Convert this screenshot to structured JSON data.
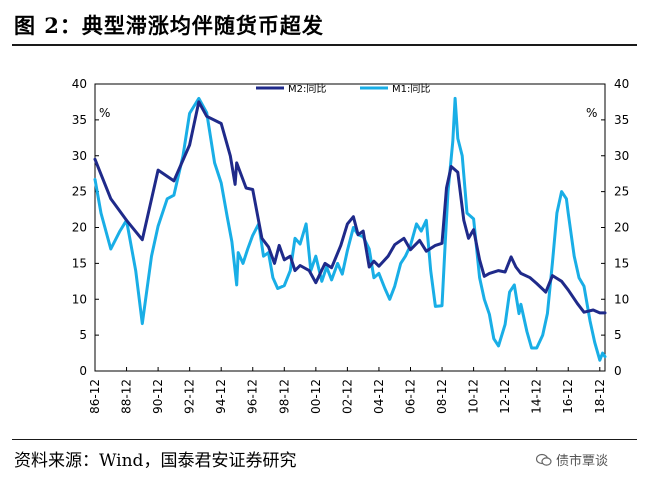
{
  "header": {
    "title": "图 2：典型滞涨均伴随货币超发"
  },
  "footer": {
    "source": "资料来源：Wind，国泰君安证券研究",
    "watermark": "债市覃谈"
  },
  "colors": {
    "m2": "#1f2a8a",
    "m1": "#19aee6",
    "frame": "#000000"
  },
  "chart_data": {
    "type": "line",
    "title": "",
    "xlabel": "",
    "ylabel": "%",
    "ylabel_right": "%",
    "ylim": [
      0,
      40
    ],
    "yticks": [
      "0",
      "5",
      "10",
      "15",
      "20",
      "25",
      "30",
      "35",
      "40"
    ],
    "yticks_right": [
      "0",
      "5",
      "10",
      "15",
      "20",
      "25",
      "30",
      "35",
      "40"
    ],
    "xlim": [
      1986.92,
      2019.25
    ],
    "xticks": [
      {
        "label": "86-12",
        "x": 1986.92
      },
      {
        "label": "88-12",
        "x": 1988.92
      },
      {
        "label": "90-12",
        "x": 1990.92
      },
      {
        "label": "92-12",
        "x": 1992.92
      },
      {
        "label": "94-12",
        "x": 1994.92
      },
      {
        "label": "96-12",
        "x": 1996.92
      },
      {
        "label": "98-12",
        "x": 1998.92
      },
      {
        "label": "00-12",
        "x": 2000.92
      },
      {
        "label": "02-12",
        "x": 2002.92
      },
      {
        "label": "04-12",
        "x": 2004.92
      },
      {
        "label": "06-12",
        "x": 2006.92
      },
      {
        "label": "08-12",
        "x": 2008.92
      },
      {
        "label": "10-12",
        "x": 2010.92
      },
      {
        "label": "12-12",
        "x": 2012.92
      },
      {
        "label": "14-12",
        "x": 2014.92
      },
      {
        "label": "16-12",
        "x": 2016.92
      },
      {
        "label": "18-12",
        "x": 2018.92
      }
    ],
    "legend": {
      "placement": "top-center"
    },
    "series": [
      {
        "name": "M2:同比",
        "color_key": "m2",
        "width": 3,
        "x": [
          1986.92,
          1987.92,
          1988.92,
          1989.92,
          1990.92,
          1991.92,
          1992.92,
          1993.5,
          1994.0,
          1994.92,
          1995.5,
          1995.8,
          1995.9,
          1996.5,
          1996.92,
          1997.5,
          1997.92,
          1998.3,
          1998.6,
          1998.92,
          1999.3,
          1999.6,
          1999.92,
          2000.5,
          2000.92,
          2001.5,
          2001.92,
          2002.5,
          2002.92,
          2003.3,
          2003.6,
          2003.92,
          2004.3,
          2004.6,
          2004.92,
          2005.5,
          2005.92,
          2006.5,
          2006.92,
          2007.5,
          2007.92,
          2008.5,
          2008.92,
          2009.2,
          2009.5,
          2009.92,
          2010.3,
          2010.6,
          2010.92,
          2011.3,
          2011.6,
          2011.92,
          2012.5,
          2012.92,
          2013.3,
          2013.6,
          2013.92,
          2014.5,
          2014.92,
          2015.5,
          2015.92,
          2016.5,
          2016.92,
          2017.5,
          2017.92,
          2018.5,
          2018.92,
          2019.25
        ],
        "y": [
          29.5,
          24,
          21,
          18.3,
          28,
          26.5,
          31.5,
          37.5,
          35.5,
          34.5,
          30,
          26,
          29,
          25.5,
          25.3,
          18.5,
          17.3,
          15,
          17.5,
          15.5,
          16,
          14,
          14.7,
          14,
          12.3,
          15,
          14.4,
          17.5,
          20.5,
          21.5,
          19,
          19.5,
          14.5,
          15.3,
          14.6,
          16,
          17.6,
          18.5,
          16.9,
          18.2,
          16.7,
          17.5,
          17.8,
          25.5,
          28.5,
          27.7,
          21,
          18.5,
          19.7,
          15.5,
          13.2,
          13.6,
          14,
          13.8,
          15.9,
          14.5,
          13.6,
          13,
          12.2,
          11,
          13.3,
          12.5,
          11.3,
          9.4,
          8.2,
          8.5,
          8.1,
          8.1
        ]
      },
      {
        "name": "M1:同比",
        "color_key": "m1",
        "width": 3,
        "x": [
          1986.92,
          1987.3,
          1987.92,
          1988.5,
          1988.92,
          1989.5,
          1989.92,
          1990.5,
          1990.92,
          1991.5,
          1991.92,
          1992.5,
          1992.92,
          1993.5,
          1994.0,
          1994.5,
          1994.92,
          1995.3,
          1995.6,
          1995.9,
          1996.0,
          1996.3,
          1996.6,
          1996.92,
          1997.3,
          1997.6,
          1997.92,
          1998.2,
          1998.5,
          1998.92,
          1999.3,
          1999.6,
          1999.92,
          2000.3,
          2000.6,
          2000.92,
          2001.3,
          2001.6,
          2001.92,
          2002.3,
          2002.6,
          2002.92,
          2003.3,
          2003.6,
          2003.92,
          2004.3,
          2004.6,
          2004.92,
          2005.3,
          2005.6,
          2005.92,
          2006.3,
          2006.6,
          2006.92,
          2007.3,
          2007.6,
          2007.92,
          2008.2,
          2008.5,
          2008.92,
          2009.1,
          2009.3,
          2009.6,
          2009.75,
          2009.92,
          2010.2,
          2010.5,
          2010.92,
          2011.3,
          2011.6,
          2011.92,
          2012.2,
          2012.5,
          2012.92,
          2013.2,
          2013.5,
          2013.8,
          2013.92,
          2014.3,
          2014.6,
          2014.92,
          2015.3,
          2015.6,
          2015.92,
          2016.2,
          2016.5,
          2016.8,
          2016.92,
          2017.3,
          2017.6,
          2017.92,
          2018.3,
          2018.6,
          2018.92,
          2019.1,
          2019.25
        ],
        "y": [
          26.7,
          22,
          17,
          19.5,
          21,
          14,
          6.6,
          16,
          20.2,
          24,
          24.5,
          30,
          35.9,
          38,
          36,
          29,
          26.2,
          21.5,
          18,
          12,
          16.5,
          15,
          17,
          18.9,
          20.5,
          16,
          16.5,
          13,
          11.5,
          11.9,
          14,
          18.5,
          17.7,
          20.5,
          14,
          16,
          12.5,
          14.5,
          12.7,
          15,
          13.5,
          16.8,
          20,
          19,
          18.7,
          17,
          13,
          13.6,
          11.5,
          10,
          11.8,
          15,
          16,
          17.5,
          20.5,
          19.5,
          21,
          14,
          9,
          9.1,
          17,
          25,
          32,
          38,
          32.4,
          30,
          22,
          21.2,
          13,
          10,
          7.9,
          4.5,
          3.5,
          6.5,
          11,
          12,
          8,
          9.3,
          5.5,
          3.2,
          3.2,
          5,
          8,
          15.2,
          22,
          25,
          24,
          22,
          16,
          13,
          11.8,
          7,
          4,
          1.5,
          2.5,
          2.0
        ]
      }
    ]
  }
}
